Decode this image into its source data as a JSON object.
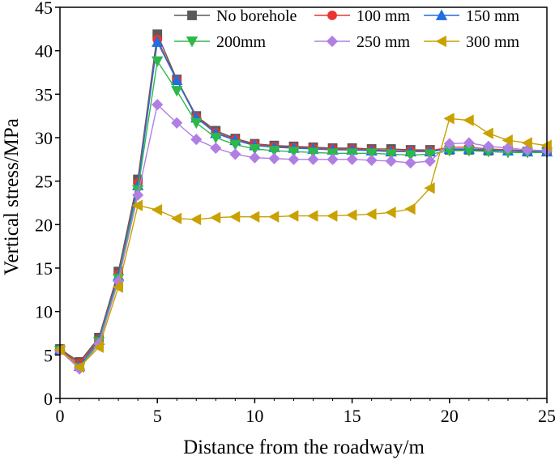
{
  "chart_data": {
    "type": "line",
    "title": "",
    "xlabel": "Distance from the roadway/m",
    "ylabel": "Vertical stress/MPa",
    "xlim": [
      0,
      25
    ],
    "ylim": [
      0,
      45
    ],
    "xticks": [
      0,
      5,
      10,
      15,
      20,
      25
    ],
    "yticks": [
      0,
      5,
      10,
      15,
      20,
      25,
      30,
      35,
      40,
      45
    ],
    "grid": false,
    "legend_position": "top-right",
    "x": [
      0,
      1,
      2,
      3,
      4,
      5,
      6,
      7,
      8,
      9,
      10,
      11,
      12,
      13,
      14,
      15,
      16,
      17,
      18,
      19,
      20,
      21,
      22,
      23,
      24,
      25
    ],
    "series": [
      {
        "name": "No borehole",
        "color": "#595959",
        "marker": "square",
        "values": [
          5.7,
          4.2,
          7.0,
          14.6,
          25.2,
          41.9,
          36.7,
          32.5,
          30.8,
          29.9,
          29.3,
          29.1,
          29.0,
          28.9,
          28.8,
          28.8,
          28.7,
          28.7,
          28.6,
          28.6,
          28.6,
          28.6,
          28.5,
          28.5,
          28.4,
          28.4
        ]
      },
      {
        "name": "100 mm",
        "color": "#e8352e",
        "marker": "circle",
        "values": [
          5.6,
          4.0,
          6.8,
          14.3,
          24.8,
          41.3,
          36.6,
          32.4,
          30.6,
          29.8,
          29.2,
          29.0,
          28.9,
          28.8,
          28.7,
          28.7,
          28.6,
          28.5,
          28.5,
          28.5,
          28.9,
          28.9,
          28.7,
          28.6,
          28.5,
          28.5
        ]
      },
      {
        "name": "150 mm",
        "color": "#1f6fe0",
        "marker": "triangle-up",
        "values": [
          5.6,
          3.7,
          6.7,
          14.1,
          24.5,
          41.0,
          36.6,
          32.3,
          30.5,
          29.7,
          29.1,
          28.9,
          28.8,
          28.7,
          28.6,
          28.6,
          28.5,
          28.4,
          28.4,
          28.4,
          28.7,
          28.7,
          28.6,
          28.5,
          28.4,
          28.4
        ]
      },
      {
        "name": "200mm",
        "color": "#2db84a",
        "marker": "triangle-down",
        "values": [
          5.5,
          3.5,
          6.5,
          13.8,
          24.0,
          38.8,
          35.4,
          31.7,
          30.0,
          29.2,
          28.7,
          28.5,
          28.4,
          28.3,
          28.2,
          28.2,
          28.2,
          28.1,
          28.0,
          28.1,
          28.5,
          28.5,
          28.4,
          28.3,
          28.3,
          28.3
        ]
      },
      {
        "name": "250 mm",
        "color": "#b07fe3",
        "marker": "diamond",
        "values": [
          5.5,
          3.4,
          6.3,
          13.5,
          23.4,
          33.8,
          31.7,
          29.8,
          28.8,
          28.1,
          27.7,
          27.6,
          27.5,
          27.5,
          27.5,
          27.5,
          27.4,
          27.3,
          27.1,
          27.3,
          29.3,
          29.4,
          29.0,
          28.8,
          28.6,
          28.5
        ]
      },
      {
        "name": "300 mm",
        "color": "#c9a100",
        "marker": "triangle-left",
        "values": [
          5.6,
          3.6,
          5.9,
          12.8,
          22.2,
          21.7,
          20.7,
          20.6,
          20.8,
          20.9,
          20.9,
          20.9,
          21.0,
          21.0,
          21.0,
          21.1,
          21.2,
          21.4,
          21.8,
          24.2,
          32.2,
          32.0,
          30.5,
          29.7,
          29.4,
          29.1
        ]
      }
    ]
  }
}
